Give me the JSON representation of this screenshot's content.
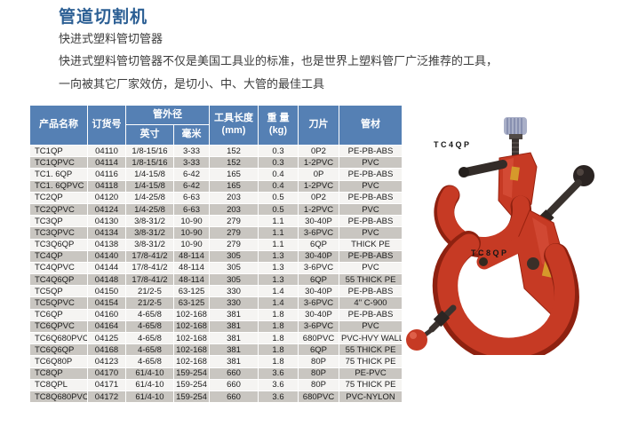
{
  "page": {
    "title": "管道切割机",
    "subtitle": "快进式塑料管切管器",
    "description_line1": "快进式塑料管切管器不仅是美国工具业的标准，也是世界上塑料管厂广泛推荐的工具，",
    "description_line2": "一向被其它厂家效仿，是切小、中、大管的最佳工具"
  },
  "colors": {
    "title-blue": "#2c5f94",
    "header-blue": "#5580b4",
    "row-gray": "#c9c6c1",
    "row-light": "#f5f4f2",
    "tool-red": "#c63a24",
    "tool-red-dark": "#8e2110",
    "badge-yellow": "#d6992b",
    "knob-gray": "#a9afc7",
    "metal-black": "#2b2422"
  },
  "table": {
    "headers": {
      "product_name": "产品名称",
      "order_no": "订货号",
      "outer_diameter": "管外径",
      "inch": "英寸",
      "mm": "毫米",
      "tool_length_line1": "工具长度",
      "tool_length_line2": "(mm)",
      "weight_line1": "重 量",
      "weight_line2": "(kg)",
      "blade": "刀片",
      "material": "管材"
    },
    "rows": [
      [
        "TC1QP",
        "04110",
        "1/8-15/16",
        "3-33",
        "152",
        "0.3",
        "0P2",
        "PE-PB-ABS"
      ],
      [
        "TC1QPVC",
        "04114",
        "1/8-15/16",
        "3-33",
        "152",
        "0.3",
        "1-2PVC",
        "PVC"
      ],
      [
        "TC1. 6QP",
        "04116",
        "1/4-15/8",
        "6-42",
        "165",
        "0.4",
        "0P",
        "PE-PB-ABS"
      ],
      [
        "TC1. 6QPVC",
        "04118",
        "1/4-15/8",
        "6-42",
        "165",
        "0.4",
        "1-2PVC",
        "PVC"
      ],
      [
        "TC2QP",
        "04120",
        "1/4-25/8",
        "6-63",
        "203",
        "0.5",
        "0P2",
        "PE-PB-ABS"
      ],
      [
        "TC2QPVC",
        "04124",
        "1/4-25/8",
        "6-63",
        "203",
        "0.5",
        "1-2PVC",
        "PVC"
      ],
      [
        "TC3QP",
        "04130",
        "3/8-31/2",
        "10-90",
        "279",
        "1.1",
        "30-40P",
        "PE-PB-ABS"
      ],
      [
        "TC3QPVC",
        "04134",
        "3/8-31/2",
        "10-90",
        "279",
        "1.1",
        "3-6PVC",
        "PVC"
      ],
      [
        "TC3Q6QP",
        "04138",
        "3/8-31/2",
        "10-90",
        "279",
        "1.1",
        "6QP",
        "THICK PE"
      ],
      [
        "TC4QP",
        "04140",
        "17/8-41/2",
        "48-114",
        "305",
        "1.3",
        "30-40P",
        "PE-PB-ABS"
      ],
      [
        "TC4QPVC",
        "04144",
        "17/8-41/2",
        "48-114",
        "305",
        "1.3",
        "3-6PVC",
        "PVC"
      ],
      [
        "TC4Q6QP",
        "04148",
        "17/8-41/2",
        "48-114",
        "305",
        "1.3",
        "6QP",
        "55 THICK PE"
      ],
      [
        "TC5QP",
        "04150",
        "21/2-5",
        "63-125",
        "330",
        "1.4",
        "30-40P",
        "PE-PB-ABS"
      ],
      [
        "TC5QPVC",
        "04154",
        "21/2-5",
        "63-125",
        "330",
        "1.4",
        "3-6PVC",
        "4\" C-900"
      ],
      [
        "TC6QP",
        "04160",
        "4-65/8",
        "102-168",
        "381",
        "1.8",
        "30-40P",
        "PE-PB-ABS"
      ],
      [
        "TC6QPVC",
        "04164",
        "4-65/8",
        "102-168",
        "381",
        "1.8",
        "3-6PVC",
        "PVC"
      ],
      [
        "TC6Q680PVC",
        "04125",
        "4-65/8",
        "102-168",
        "381",
        "1.8",
        "680PVC",
        "PVC-HVY WALL"
      ],
      [
        "TC6Q6QP",
        "04168",
        "4-65/8",
        "102-168",
        "381",
        "1.8",
        "6QP",
        "55 THICK PE"
      ],
      [
        "TC6Q80P",
        "04123",
        "4-65/8",
        "102-168",
        "381",
        "1.8",
        "80P",
        "75 THICK PE"
      ],
      [
        "TC8QP",
        "04170",
        "61/4-10",
        "159-254",
        "660",
        "3.6",
        "80P",
        "PE-PVC"
      ],
      [
        "TC8QPL",
        "04171",
        "61/4-10",
        "159-254",
        "660",
        "3.6",
        "80P",
        "75 THICK PE"
      ],
      [
        "TC8Q680PVC",
        "04172",
        "61/4-10",
        "159-254",
        "660",
        "3.6",
        "680PVC",
        "PVC-NYLON"
      ]
    ]
  },
  "products": [
    {
      "label": "TC4QP"
    },
    {
      "label": "TC8QP"
    }
  ]
}
